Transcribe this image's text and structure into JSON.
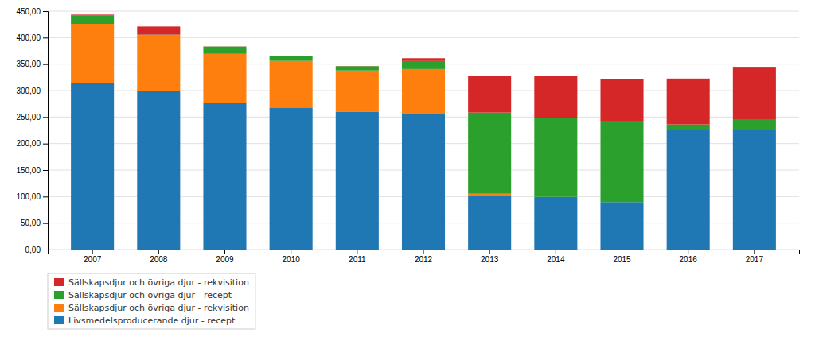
{
  "chart_data": {
    "type": "bar",
    "stacked": true,
    "grid": true,
    "categories": [
      "2007",
      "2008",
      "2009",
      "2010",
      "2011",
      "2012",
      "2013",
      "2014",
      "2015",
      "2016",
      "2017"
    ],
    "series": [
      {
        "name": "Livsmedelsproducerande djur - recept",
        "values": [
          314.65,
          299.74,
          277.0,
          268.0,
          259.59,
          257.48,
          101.57,
          99.37,
          89.61,
          225.79,
          226.29
        ]
      },
      {
        "name": "Sällskapsdjur och övriga djur - rekvisition",
        "values": [
          111.36,
          105.15,
          92.3,
          88.0,
          78.35,
          83.19,
          3.81,
          0.0,
          0.0,
          0.0,
          0.0
        ]
      },
      {
        "name": "Sällskapsdjur och övriga djur - recept",
        "values": [
          16.14,
          0.7,
          13.8,
          9.5,
          8.12,
          15.11,
          153.18,
          148.79,
          152.11,
          10.33,
          19.69
        ]
      },
      {
        "name": "Sällskapsdjur och övriga djur - rekvisition",
        "values": [
          1.27,
          15.33,
          0.2,
          0.2,
          0.28,
          5.27,
          69.49,
          79.44,
          80.5,
          86.66,
          98.87
        ]
      }
    ],
    "ylim": [
      0,
      450
    ],
    "yticks": [
      {
        "value": 0,
        "label": "0,00"
      },
      {
        "value": 50,
        "label": "50,00"
      },
      {
        "value": 100,
        "label": "100,00"
      },
      {
        "value": 150,
        "label": "150,00"
      },
      {
        "value": 200,
        "label": "200,00"
      },
      {
        "value": 250,
        "label": "250,00"
      },
      {
        "value": 300,
        "label": "300,00"
      },
      {
        "value": 350,
        "label": "350,00"
      },
      {
        "value": 400,
        "label": "400,00"
      },
      {
        "value": 450,
        "label": "450,00"
      }
    ]
  }
}
